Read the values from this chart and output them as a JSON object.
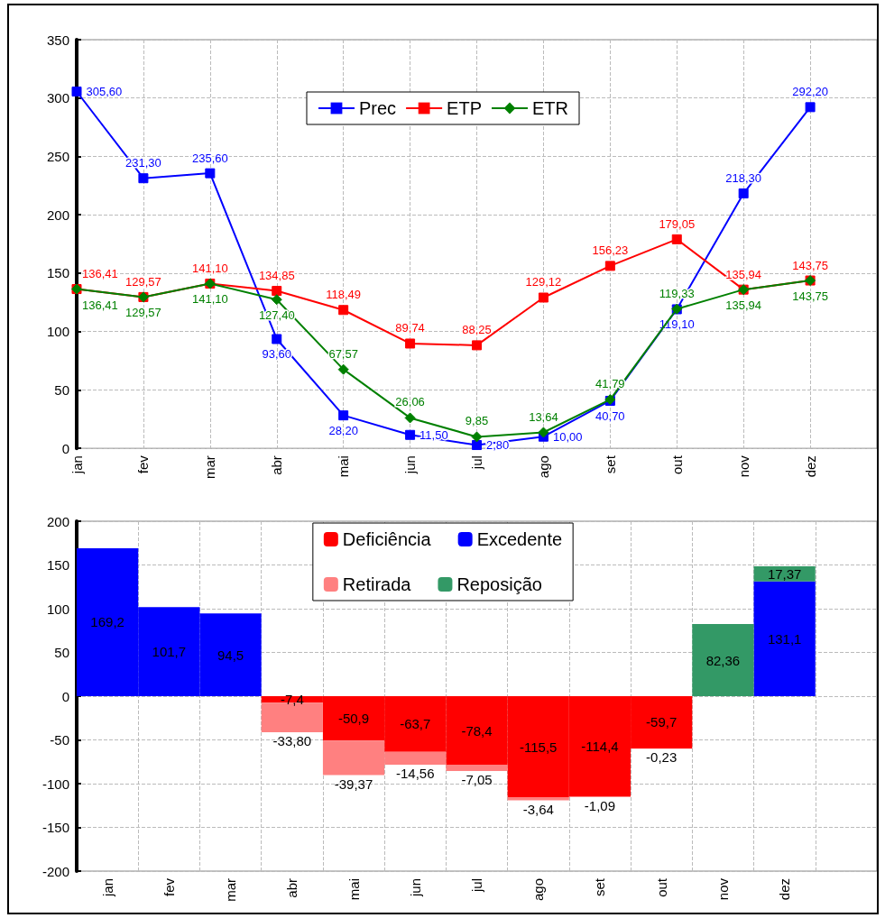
{
  "chart_data": [
    {
      "type": "line",
      "categories": [
        "jan",
        "fev",
        "mar",
        "abr",
        "mai",
        "jun",
        "jul",
        "ago",
        "set",
        "out",
        "nov",
        "dez",
        null
      ],
      "ylim": [
        0,
        350
      ],
      "yticks": [
        0,
        50,
        100,
        150,
        200,
        250,
        300,
        350
      ],
      "grid": true,
      "legend": "top",
      "series": [
        {
          "name": "Prec",
          "color": "#0000ff",
          "marker": "square",
          "values": [
            305.6,
            231.3,
            235.6,
            93.6,
            28.2,
            11.5,
            2.8,
            10.0,
            40.7,
            119.1,
            218.3,
            292.2,
            null
          ],
          "value_labels": [
            "305,60",
            "231,30",
            "235,60",
            "93,60",
            "28,20",
            "11,50",
            "2,80",
            "10,00",
            "40,70",
            "119,10",
            "218,30",
            "292,20",
            null
          ]
        },
        {
          "name": "ETP",
          "color": "#ff0000",
          "marker": "square",
          "values": [
            136.41,
            129.57,
            141.1,
            134.85,
            118.49,
            89.74,
            88.25,
            129.12,
            156.23,
            179.05,
            135.94,
            143.75,
            null
          ],
          "value_labels": [
            "136,41",
            "129,57",
            "141,10",
            "134,85",
            "118,49",
            "89,74",
            "88,25",
            "129,12",
            "156,23",
            "179,05",
            "135,94",
            "143,75",
            null
          ]
        },
        {
          "name": "ETR",
          "color": "#008000",
          "marker": "diamond",
          "values": [
            136.41,
            129.57,
            141.1,
            127.4,
            67.57,
            26.06,
            9.85,
            13.64,
            41.79,
            119.33,
            135.94,
            143.75,
            null
          ],
          "value_labels": [
            "136,41",
            "129,57",
            "141,10",
            "127,40",
            "67,57",
            "26,06",
            "9,85",
            "13,64",
            "41,79",
            "119,33",
            "135,94",
            "143,75",
            null
          ]
        }
      ]
    },
    {
      "type": "bar",
      "stacked": true,
      "categories": [
        "jan",
        "fev",
        "mar",
        "abr",
        "mai",
        "jun",
        "jul",
        "ago",
        "set",
        "out",
        "nov",
        "dez",
        null
      ],
      "ylim": [
        -200,
        200
      ],
      "yticks": [
        -200,
        -150,
        -100,
        -50,
        0,
        50,
        100,
        150,
        200
      ],
      "grid": true,
      "legend": "top",
      "series": [
        {
          "name": "Deficiência",
          "color": "#ff0000",
          "values": [
            null,
            null,
            null,
            -7.4,
            -50.9,
            -63.7,
            -78.4,
            -115.5,
            -114.4,
            -59.7,
            null,
            null,
            null
          ],
          "value_labels": [
            null,
            null,
            null,
            "-7,4",
            "-50,9",
            "-63,7",
            "-78,4",
            "-115,5",
            "-114,4",
            "-59,7",
            null,
            null,
            null
          ]
        },
        {
          "name": "Excedente",
          "color": "#0000ff",
          "values": [
            169.2,
            101.7,
            94.5,
            null,
            null,
            null,
            null,
            null,
            null,
            null,
            null,
            131.1,
            null
          ],
          "value_labels": [
            "169,2",
            "101,7",
            "94,5",
            null,
            null,
            null,
            null,
            null,
            null,
            null,
            null,
            "131,1",
            null
          ]
        },
        {
          "name": "Retirada",
          "color": "#ff8080",
          "values": [
            null,
            null,
            null,
            -33.8,
            -39.37,
            -14.56,
            -7.05,
            -3.64,
            -1.09,
            -0.23,
            null,
            null,
            null
          ],
          "value_labels": [
            null,
            null,
            null,
            "-33,80",
            "-39,37",
            "-14,56",
            "-7,05",
            "-3,64",
            "-1,09",
            "-0,23",
            null,
            null,
            null
          ]
        },
        {
          "name": "Reposição",
          "color": "#339966",
          "values": [
            null,
            null,
            null,
            null,
            null,
            null,
            null,
            null,
            null,
            null,
            82.36,
            17.37,
            null
          ],
          "value_labels": [
            null,
            null,
            null,
            null,
            null,
            null,
            null,
            null,
            null,
            null,
            "82,36",
            "17,37",
            null
          ]
        }
      ]
    }
  ]
}
